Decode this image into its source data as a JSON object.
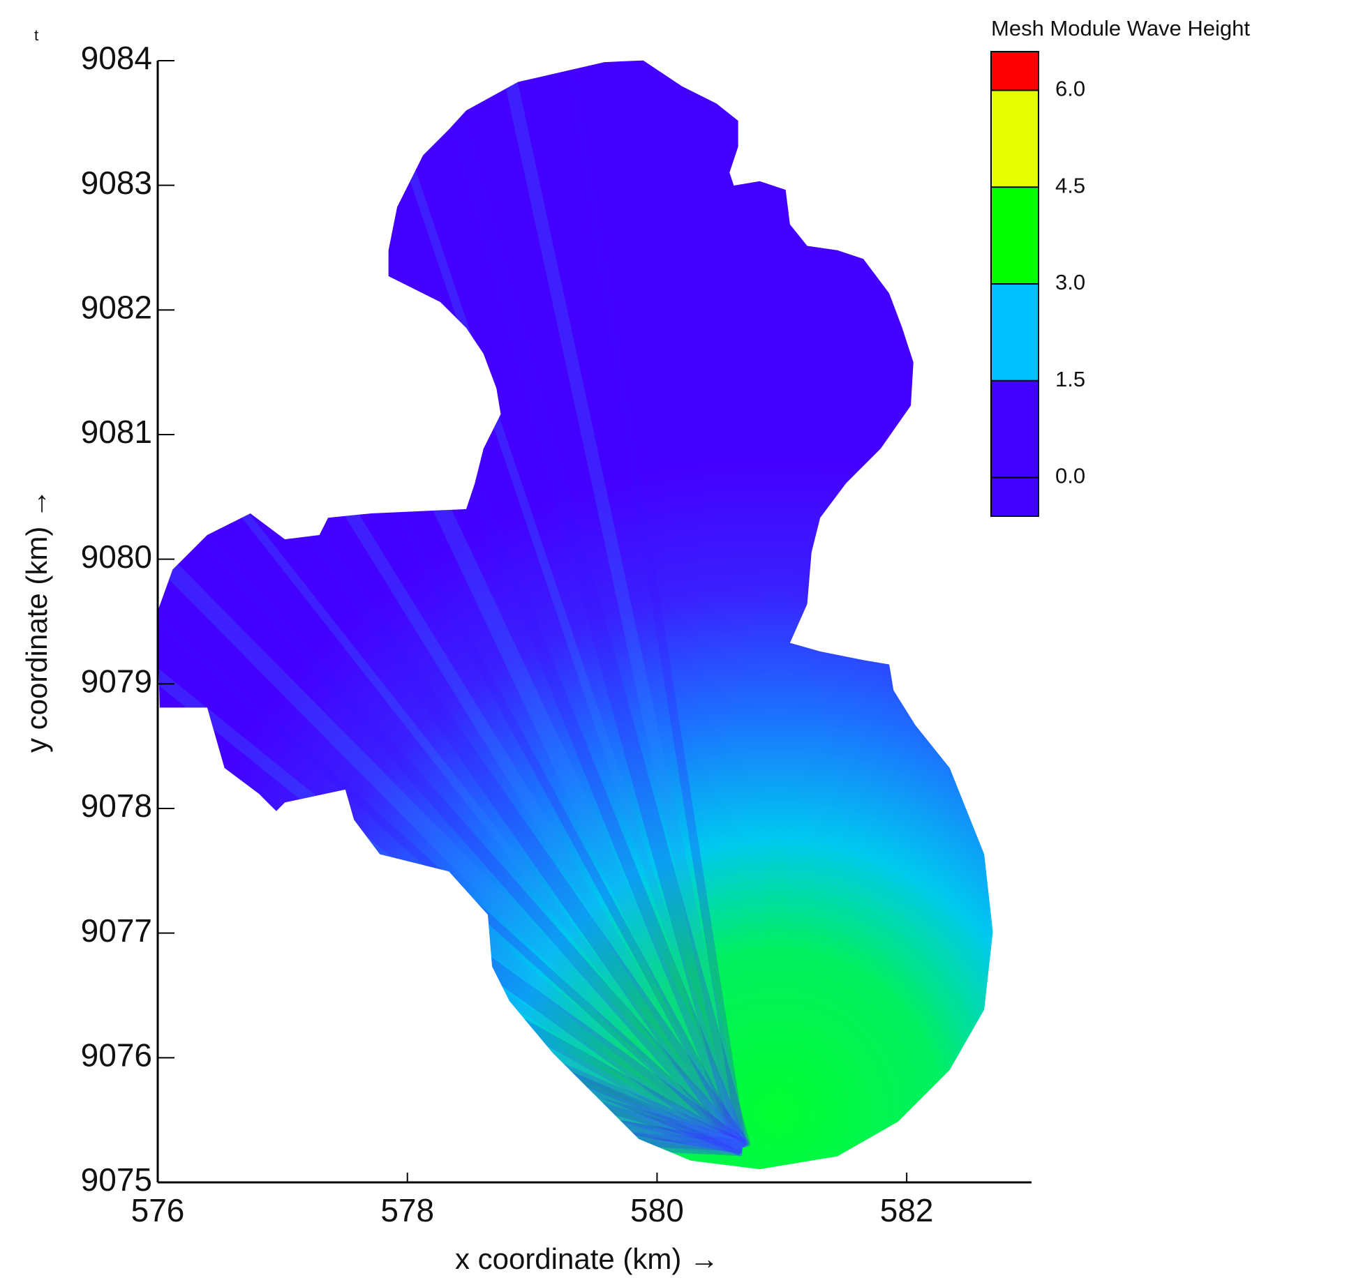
{
  "chart_data": {
    "type": "contour",
    "annotation": "t",
    "xlabel": "x coordinate (km) →",
    "ylabel": "y coordinate (km) →",
    "xlim": [
      576,
      583
    ],
    "ylim": [
      9075,
      9084
    ],
    "xticks": [
      576,
      578,
      580,
      582
    ],
    "yticks": [
      9075,
      9076,
      9077,
      9078,
      9079,
      9080,
      9081,
      9082,
      9083,
      9084
    ],
    "colorbar": {
      "title": "Mesh Module Wave Height",
      "lim": [
        -0.6,
        6.6
      ],
      "ticks": [
        {
          "value": 0,
          "label": "0.0"
        },
        {
          "value": 1.5,
          "label": "1.5"
        },
        {
          "value": 3,
          "label": "3.0"
        },
        {
          "value": 4.5,
          "label": "4.5"
        },
        {
          "value": 6,
          "label": "6.0"
        }
      ],
      "colors": [
        "#4200ff",
        "#4200ff",
        "#00bfff",
        "#00ff00",
        "#e6ff00",
        "#ff0000"
      ]
    }
  }
}
